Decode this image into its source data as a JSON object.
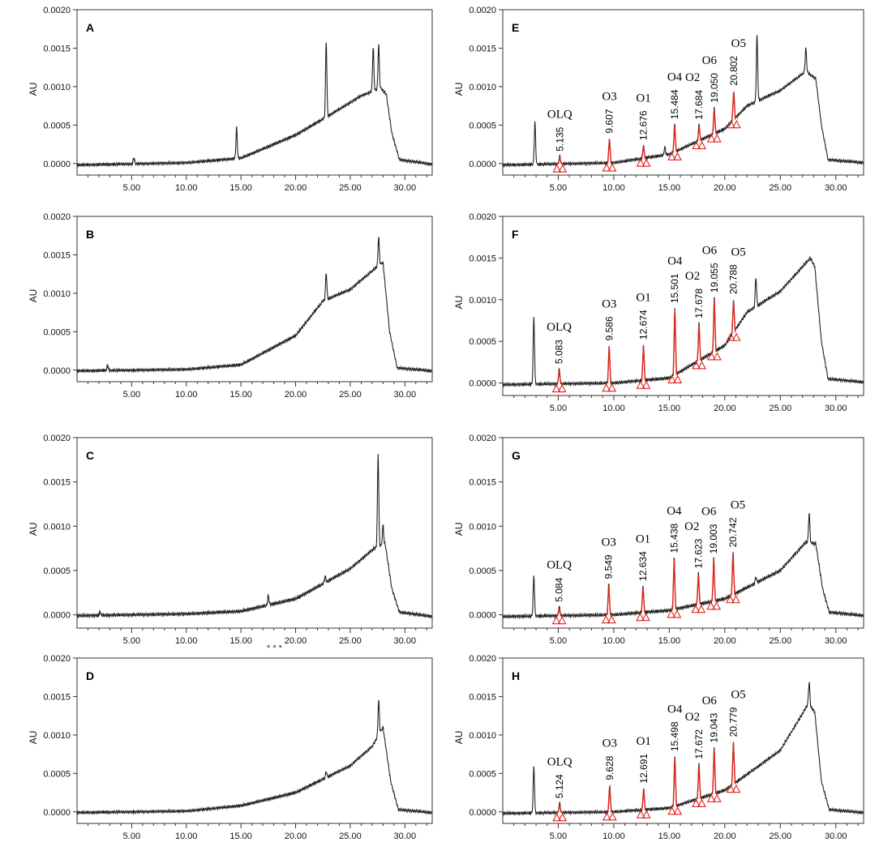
{
  "figure": {
    "accent_colors": {
      "trace": "#222222",
      "integration_marker": "#e2231a"
    },
    "notes": [
      "* * *"
    ]
  },
  "chart_data": [
    {
      "panel": "A",
      "type": "line",
      "ylabel": "AU",
      "xlim": [
        0,
        32.5
      ],
      "ylim": [
        -0.00015,
        0.002
      ],
      "xticks": [
        "5.00",
        "10.00",
        "15.00",
        "20.00",
        "25.00",
        "30.00"
      ],
      "yticks": [
        "0.0000",
        "0.0005",
        "0.0010",
        "0.0015",
        "0.0020"
      ],
      "baseline": [
        [
          0,
          -2e-05
        ],
        [
          10,
          1e-05
        ],
        [
          15,
          7e-05
        ],
        [
          20,
          0.00037
        ],
        [
          23,
          0.00062
        ],
        [
          26,
          0.00088
        ],
        [
          27.8,
          0.00098
        ],
        [
          28.3,
          0.0009
        ],
        [
          28.8,
          0.0004
        ],
        [
          29.5,
          5e-05
        ],
        [
          32.5,
          -1e-05
        ]
      ],
      "peaks": [
        {
          "rt": 5.2,
          "h": 8e-05
        },
        {
          "rt": 14.6,
          "h": 0.0004
        },
        {
          "rt": 22.8,
          "h": 0.00098
        },
        {
          "rt": 27.1,
          "h": 0.00057
        },
        {
          "rt": 27.6,
          "h": 0.00058
        }
      ],
      "labels": []
    },
    {
      "panel": "B",
      "type": "line",
      "ylabel": "AU",
      "xlim": [
        0,
        32.5
      ],
      "ylim": [
        -0.00015,
        0.002
      ],
      "xticks": [
        "5.00",
        "10.00",
        "15.00",
        "20.00",
        "25.00",
        "30.00"
      ],
      "yticks": [
        "0.0000",
        "0.0005",
        "0.0010",
        "0.0015",
        "0.0020"
      ],
      "baseline": [
        [
          0,
          -1e-05
        ],
        [
          10,
          1e-05
        ],
        [
          15,
          7e-05
        ],
        [
          20,
          0.00045
        ],
        [
          22.5,
          0.0009
        ],
        [
          25,
          0.00105
        ],
        [
          27.5,
          0.00135
        ],
        [
          28,
          0.0014
        ],
        [
          28.6,
          0.0005
        ],
        [
          29.3,
          3e-05
        ],
        [
          32.5,
          -1e-05
        ]
      ],
      "peaks": [
        {
          "rt": 2.8,
          "h": 7e-05
        },
        {
          "rt": 22.8,
          "h": 0.00035
        },
        {
          "rt": 27.6,
          "h": 0.00037
        }
      ],
      "labels": []
    },
    {
      "panel": "C",
      "type": "line",
      "ylabel": "AU",
      "xlim": [
        0,
        32.5
      ],
      "ylim": [
        -0.00015,
        0.002
      ],
      "xticks": [
        "5.00",
        "10.00",
        "15.00",
        "20.00",
        "25.00",
        "30.00"
      ],
      "yticks": [
        "0.0000",
        "0.0005",
        "0.0010",
        "0.0015",
        "0.0020"
      ],
      "baseline": [
        [
          0,
          -1e-05
        ],
        [
          10,
          1e-05
        ],
        [
          15,
          4e-05
        ],
        [
          20,
          0.00018
        ],
        [
          25,
          0.00052
        ],
        [
          27.2,
          0.00075
        ],
        [
          28.2,
          0.0008
        ],
        [
          28.8,
          0.0003
        ],
        [
          29.5,
          3e-05
        ],
        [
          32.5,
          -2e-05
        ]
      ],
      "peaks": [
        {
          "rt": 2.1,
          "h": 4e-05
        },
        {
          "rt": 17.5,
          "h": 0.00011
        },
        {
          "rt": 22.7,
          "h": 7e-05
        },
        {
          "rt": 27.55,
          "h": 0.00105
        },
        {
          "rt": 28.0,
          "h": 0.00022
        }
      ],
      "labels": []
    },
    {
      "panel": "D",
      "type": "line",
      "ylabel": "AU",
      "xlim": [
        0,
        32.5
      ],
      "ylim": [
        -0.00015,
        0.002
      ],
      "xticks": [
        "5.00",
        "10.00",
        "15.00",
        "20.00",
        "25.00",
        "30.00"
      ],
      "yticks": [
        "0.0000",
        "0.0005",
        "0.0010",
        "0.0015",
        "0.0020"
      ],
      "baseline": [
        [
          0,
          -1e-05
        ],
        [
          10,
          1e-05
        ],
        [
          15,
          8e-05
        ],
        [
          20,
          0.00025
        ],
        [
          25,
          0.0006
        ],
        [
          27,
          0.00085
        ],
        [
          28,
          0.0011
        ],
        [
          28.7,
          0.0004
        ],
        [
          29.4,
          3e-05
        ],
        [
          32.5,
          -1e-05
        ]
      ],
      "peaks": [
        {
          "rt": 22.8,
          "h": 8e-05
        },
        {
          "rt": 27.6,
          "h": 0.00045
        }
      ],
      "labels": []
    },
    {
      "panel": "E",
      "type": "line",
      "ylabel": "AU",
      "xlim": [
        0,
        32.5
      ],
      "ylim": [
        -0.00015,
        0.002
      ],
      "xticks": [
        "5.00",
        "10.00",
        "15.00",
        "20.00",
        "25.00",
        "30.00"
      ],
      "yticks": [
        "0.0000",
        "0.0005",
        "0.0010",
        "0.0015",
        "0.0020"
      ],
      "baseline": [
        [
          0,
          -2e-05
        ],
        [
          10,
          1e-05
        ],
        [
          15,
          0.00012
        ],
        [
          20,
          0.00045
        ],
        [
          22,
          0.00075
        ],
        [
          25,
          0.00095
        ],
        [
          27.3,
          0.0012
        ],
        [
          28.2,
          0.0011
        ],
        [
          28.7,
          0.0005
        ],
        [
          29.3,
          5e-05
        ],
        [
          32.5,
          1e-05
        ]
      ],
      "peaks": [
        {
          "rt": 2.9,
          "h": 0.00055
        },
        {
          "rt": 5.135,
          "h": 0.0001
        },
        {
          "rt": 9.607,
          "h": 0.00032
        },
        {
          "rt": 12.676,
          "h": 0.00017
        },
        {
          "rt": 14.6,
          "h": 0.0001
        },
        {
          "rt": 15.484,
          "h": 0.00036
        },
        {
          "rt": 17.684,
          "h": 0.00021
        },
        {
          "rt": 19.05,
          "h": 0.00034
        },
        {
          "rt": 20.802,
          "h": 0.00038
        },
        {
          "rt": 22.9,
          "h": 0.00085
        },
        {
          "rt": 27.3,
          "h": 0.0003
        }
      ],
      "labels": [
        {
          "name": "OLQ",
          "rt": "5.135"
        },
        {
          "name": "O3",
          "rt": "9.607"
        },
        {
          "name": "O1",
          "rt": "12.676"
        },
        {
          "name": "O4",
          "rt": "15.484"
        },
        {
          "name": "O2",
          "rt": "17.684"
        },
        {
          "name": "O6",
          "rt": "19.050"
        },
        {
          "name": "O5",
          "rt": "20.802"
        }
      ]
    },
    {
      "panel": "F",
      "type": "line",
      "ylabel": "AU",
      "xlim": [
        0,
        32.5
      ],
      "ylim": [
        -0.00015,
        0.002
      ],
      "xticks": [
        "5.00",
        "10.00",
        "15.00",
        "20.00",
        "25.00",
        "30.00"
      ],
      "yticks": [
        "0.0000",
        "0.0005",
        "0.0010",
        "0.0015",
        "0.0020"
      ],
      "baseline": [
        [
          0,
          -2e-05
        ],
        [
          10,
          0.0
        ],
        [
          15,
          6e-05
        ],
        [
          20,
          0.00045
        ],
        [
          22,
          0.00085
        ],
        [
          25,
          0.0011
        ],
        [
          27.7,
          0.0015
        ],
        [
          28.1,
          0.0014
        ],
        [
          28.7,
          0.0005
        ],
        [
          29.3,
          5e-05
        ],
        [
          32.5,
          1e-05
        ]
      ],
      "peaks": [
        {
          "rt": 2.8,
          "h": 0.0008
        },
        {
          "rt": 5.083,
          "h": 0.00018
        },
        {
          "rt": 9.586,
          "h": 0.00045
        },
        {
          "rt": 12.674,
          "h": 0.00043
        },
        {
          "rt": 15.501,
          "h": 0.0008
        },
        {
          "rt": 17.678,
          "h": 0.00045
        },
        {
          "rt": 19.055,
          "h": 0.00065
        },
        {
          "rt": 20.788,
          "h": 0.0004
        },
        {
          "rt": 22.8,
          "h": 0.00035
        }
      ],
      "labels": [
        {
          "name": "OLQ",
          "rt": "5.083"
        },
        {
          "name": "O3",
          "rt": "9.586"
        },
        {
          "name": "O1",
          "rt": "12.674"
        },
        {
          "name": "O4",
          "rt": "15.501"
        },
        {
          "name": "O2",
          "rt": "17.678"
        },
        {
          "name": "O6",
          "rt": "19.055"
        },
        {
          "name": "O5",
          "rt": "20.788"
        }
      ]
    },
    {
      "panel": "G",
      "type": "line",
      "ylabel": "AU",
      "xlim": [
        0,
        32.5
      ],
      "ylim": [
        -0.00015,
        0.002
      ],
      "xticks": [
        "5.00",
        "10.00",
        "15.00",
        "20.00",
        "25.00",
        "30.00"
      ],
      "yticks": [
        "0.0000",
        "0.0005",
        "0.0010",
        "0.0015",
        "0.0020"
      ],
      "baseline": [
        [
          0,
          -2e-05
        ],
        [
          10,
          0.0
        ],
        [
          15,
          5e-05
        ],
        [
          20,
          0.00018
        ],
        [
          25,
          0.0005
        ],
        [
          27.3,
          0.00082
        ],
        [
          28.2,
          0.0008
        ],
        [
          28.8,
          0.0003
        ],
        [
          29.4,
          3e-05
        ],
        [
          32.5,
          -1e-05
        ]
      ],
      "peaks": [
        {
          "rt": 2.8,
          "h": 0.00045
        },
        {
          "rt": 5.084,
          "h": 0.0001
        },
        {
          "rt": 9.549,
          "h": 0.00035
        },
        {
          "rt": 12.634,
          "h": 0.0003
        },
        {
          "rt": 15.438,
          "h": 0.00058
        },
        {
          "rt": 17.623,
          "h": 0.00035
        },
        {
          "rt": 19.003,
          "h": 0.00048
        },
        {
          "rt": 20.742,
          "h": 0.00048
        },
        {
          "rt": 22.8,
          "h": 7e-05
        },
        {
          "rt": 27.6,
          "h": 0.00033
        }
      ],
      "labels": [
        {
          "name": "OLQ",
          "rt": "5.084"
        },
        {
          "name": "O3",
          "rt": "9.549"
        },
        {
          "name": "O1",
          "rt": "12.634"
        },
        {
          "name": "O4",
          "rt": "15.438"
        },
        {
          "name": "O2",
          "rt": "17.623"
        },
        {
          "name": "O6",
          "rt": "19.003"
        },
        {
          "name": "O5",
          "rt": "20.742"
        }
      ]
    },
    {
      "panel": "H",
      "type": "line",
      "ylabel": "AU",
      "xlim": [
        0,
        32.5
      ],
      "ylim": [
        -0.00015,
        0.002
      ],
      "xticks": [
        "5.00",
        "10.00",
        "15.00",
        "20.00",
        "25.00",
        "30.00"
      ],
      "yticks": [
        "0.0000",
        "0.0005",
        "0.0010",
        "0.0015",
        "0.0020"
      ],
      "baseline": [
        [
          0,
          -2e-05
        ],
        [
          10,
          0.0
        ],
        [
          15,
          5e-05
        ],
        [
          20,
          0.00028
        ],
        [
          25,
          0.0008
        ],
        [
          27.5,
          0.0014
        ],
        [
          28.1,
          0.0013
        ],
        [
          28.7,
          0.0004
        ],
        [
          29.4,
          3e-05
        ],
        [
          32.5,
          -1e-05
        ]
      ],
      "peaks": [
        {
          "rt": 2.8,
          "h": 0.0006
        },
        {
          "rt": 5.124,
          "h": 0.00012
        },
        {
          "rt": 9.628,
          "h": 0.00035
        },
        {
          "rt": 12.691,
          "h": 0.00028
        },
        {
          "rt": 15.498,
          "h": 0.00065
        },
        {
          "rt": 17.672,
          "h": 0.00045
        },
        {
          "rt": 19.043,
          "h": 0.0006
        },
        {
          "rt": 20.779,
          "h": 0.00055
        },
        {
          "rt": 27.6,
          "h": 0.0003
        }
      ],
      "labels": [
        {
          "name": "OLQ",
          "rt": "5.124"
        },
        {
          "name": "O3",
          "rt": "9.628"
        },
        {
          "name": "O1",
          "rt": "12.691"
        },
        {
          "name": "O4",
          "rt": "15.498"
        },
        {
          "name": "O2",
          "rt": "17.672"
        },
        {
          "name": "O6",
          "rt": "19.043"
        },
        {
          "name": "O5",
          "rt": "20.779"
        }
      ]
    }
  ]
}
